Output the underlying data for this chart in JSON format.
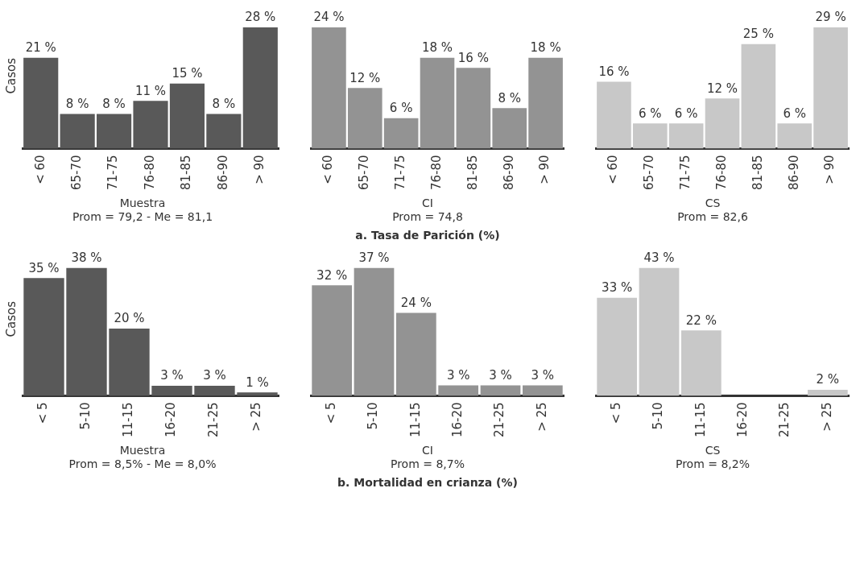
{
  "chart_data": [
    {
      "type": "bar",
      "categories": [
        "< 60",
        "65-70",
        "71-75",
        "76-80",
        "81-85",
        "86-90",
        "> 90"
      ],
      "values": [
        21,
        8,
        8,
        11,
        15,
        8,
        28
      ],
      "value_labels": [
        "21 %",
        "8 %",
        "8 %",
        "11 %",
        "15 %",
        "8 %",
        "28 %"
      ],
      "color": "#595959",
      "ylabel": "Casos",
      "xlabel": "Muestra",
      "annotations": [
        "Prom = 79,2 - Me = 81,1"
      ],
      "tick_labels": "x"
    },
    {
      "type": "bar",
      "categories": [
        "< 60",
        "65-70",
        "71-75",
        "76-80",
        "81-85",
        "86-90",
        "> 90"
      ],
      "values": [
        24,
        12,
        6,
        18,
        16,
        8,
        18
      ],
      "value_labels": [
        "24 %",
        "12 %",
        "6 %",
        "18 %",
        "16 %",
        "8 %",
        "18 %"
      ],
      "color": "#939393",
      "xlabel": "CI",
      "annotations": [
        "Prom = 74,8",
        "a. Tasa de Parición (%)"
      ],
      "tick_labels": "x"
    },
    {
      "type": "bar",
      "categories": [
        "< 60",
        "65-70",
        "71-75",
        "76-80",
        "81-85",
        "86-90",
        "> 90"
      ],
      "values": [
        16,
        6,
        6,
        12,
        25,
        6,
        29
      ],
      "value_labels": [
        "16 %",
        "6 %",
        "6 %",
        "12 %",
        "25 %",
        "6 %",
        "29 %"
      ],
      "color": "#c8c8c8",
      "xlabel": "CS",
      "annotations": [
        "Prom = 82,6"
      ],
      "tick_labels": "x"
    },
    {
      "type": "bar",
      "categories": [
        "< 5",
        "5-10",
        "11-15",
        "16-20",
        "21-25",
        "> 25"
      ],
      "values": [
        35,
        38,
        20,
        3,
        3,
        1
      ],
      "value_labels": [
        "35 %",
        "38 %",
        "20 %",
        "3 %",
        "3 %",
        "1 %"
      ],
      "color": "#595959",
      "ylabel": "Casos",
      "xlabel": "Muestra",
      "annotations": [
        "Prom = 8,5% - Me = 8,0%"
      ],
      "tick_labels": "x"
    },
    {
      "type": "bar",
      "categories": [
        "< 5",
        "5-10",
        "11-15",
        "16-20",
        "21-25",
        "> 25"
      ],
      "values": [
        32,
        37,
        24,
        3,
        3,
        3
      ],
      "value_labels": [
        "32 %",
        "37 %",
        "24 %",
        "3 %",
        "3 %",
        "3 %"
      ],
      "color": "#939393",
      "xlabel": "CI",
      "annotations": [
        "Prom = 8,7%",
        "b. Mortalidad en crianza (%)"
      ],
      "tick_labels": "x"
    },
    {
      "type": "bar",
      "categories": [
        "< 5",
        "5-10",
        "11-15",
        "16-20",
        "21-25",
        "> 25"
      ],
      "values": [
        33,
        43,
        22,
        null,
        null,
        2
      ],
      "value_labels": [
        "33 %",
        "43 %",
        "22 %",
        null,
        null,
        "2 %"
      ],
      "color": "#c8c8c8",
      "xlabel": "CS",
      "annotations": [
        "Prom = 8,2%"
      ],
      "tick_labels": "x"
    }
  ]
}
